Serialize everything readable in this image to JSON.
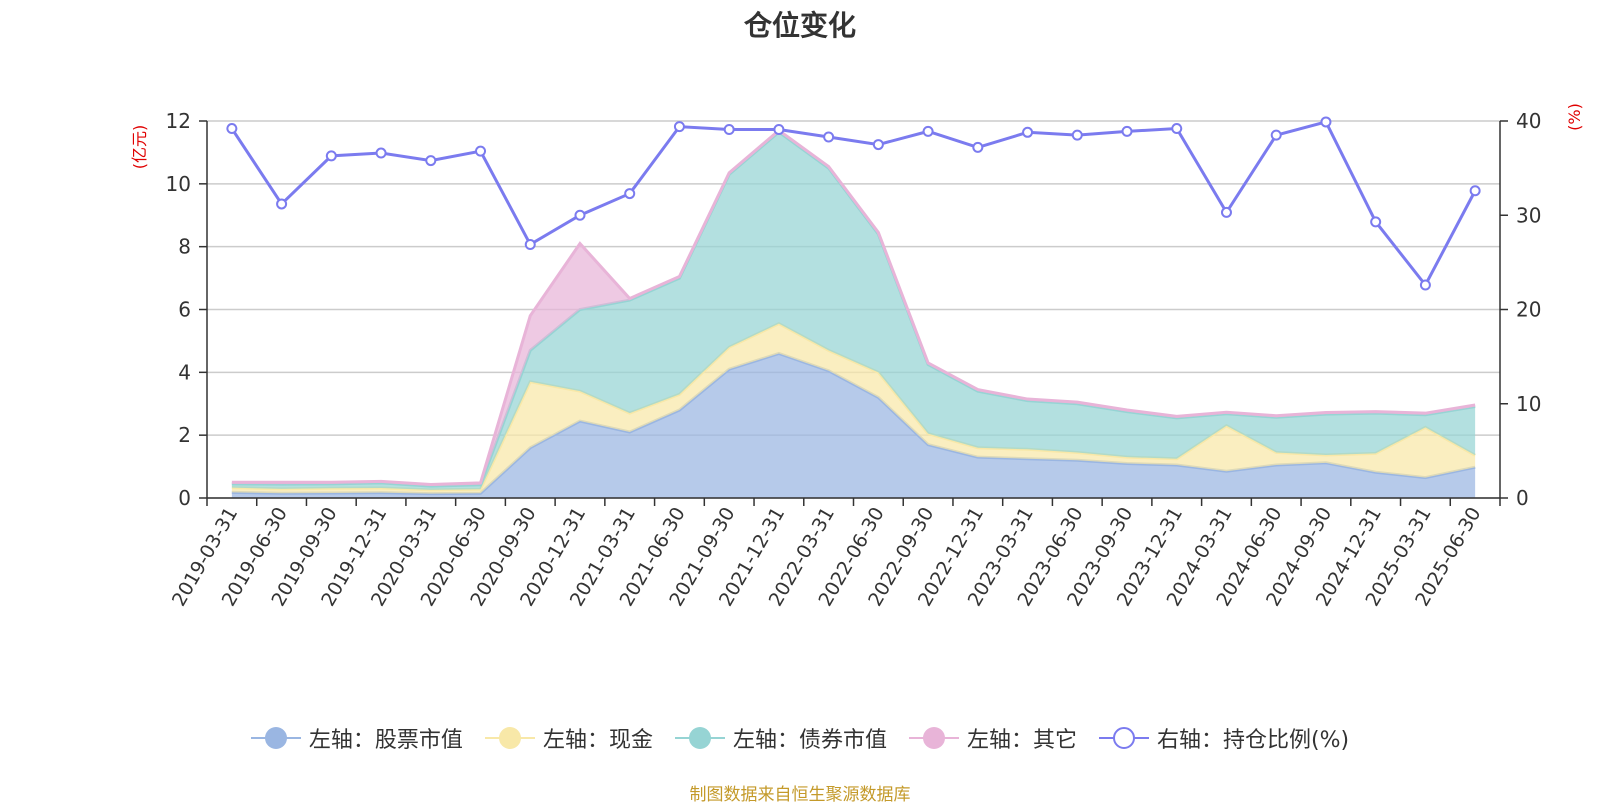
{
  "title": "仓位变化",
  "source": "制图数据来自恒生聚源数据库",
  "colors": {
    "stock": "#9ab6e2",
    "cash": "#f8e8a8",
    "bond": "#96d4d4",
    "other": "#e8b4d8",
    "ratio": "#7b7bef",
    "unit": "#e00000"
  },
  "legend": [
    {
      "label": "左轴：股票市值",
      "key": "stock",
      "style": "filled"
    },
    {
      "label": "左轴：现金",
      "key": "cash",
      "style": "filled"
    },
    {
      "label": "左轴：债券市值",
      "key": "bond",
      "style": "filled"
    },
    {
      "label": "左轴：其它",
      "key": "other",
      "style": "filled"
    },
    {
      "label": "右轴：持仓比例(%)",
      "key": "ratio",
      "style": "hollow"
    }
  ],
  "chart_data": {
    "type": "area",
    "title": "仓位变化",
    "left_unit": "(亿元)",
    "right_unit": "(%)",
    "ylim_left": [
      0,
      12
    ],
    "yticks_left": [
      0,
      2,
      4,
      6,
      8,
      10,
      12
    ],
    "ylim_right": [
      0,
      40
    ],
    "yticks_right": [
      0,
      10,
      20,
      30,
      40
    ],
    "grid": true,
    "legend_position": "bottom",
    "categories": [
      "2019-03-31",
      "2019-06-30",
      "2019-09-30",
      "2019-12-31",
      "2020-03-31",
      "2020-06-30",
      "2020-09-30",
      "2020-12-31",
      "2021-03-31",
      "2021-06-30",
      "2021-09-30",
      "2021-12-31",
      "2022-03-31",
      "2022-06-30",
      "2022-09-30",
      "2022-12-31",
      "2023-03-31",
      "2023-06-30",
      "2023-09-30",
      "2023-12-31",
      "2024-03-31",
      "2024-06-30",
      "2024-09-30",
      "2024-12-31",
      "2025-03-31",
      "2025-06-30"
    ],
    "stacked_series": [
      {
        "name": "左轴：股票市值",
        "key": "stock",
        "axis": "left",
        "values": [
          0.18,
          0.15,
          0.16,
          0.17,
          0.14,
          0.15,
          1.6,
          2.45,
          2.1,
          2.8,
          4.1,
          4.6,
          4.05,
          3.2,
          1.7,
          1.3,
          1.25,
          1.2,
          1.1,
          1.05,
          0.85,
          1.05,
          1.12,
          0.82,
          0.65,
          0.98
        ]
      },
      {
        "name": "左轴：现金",
        "key": "cash",
        "axis": "left",
        "values": [
          0.15,
          0.14,
          0.15,
          0.15,
          0.12,
          0.13,
          2.1,
          0.95,
          0.6,
          0.5,
          0.7,
          0.95,
          0.65,
          0.8,
          0.35,
          0.3,
          0.3,
          0.25,
          0.2,
          0.2,
          1.45,
          0.4,
          0.25,
          0.6,
          1.6,
          0.38
        ]
      },
      {
        "name": "左轴：债券市值",
        "key": "bond",
        "axis": "left",
        "values": [
          0.12,
          0.15,
          0.14,
          0.16,
          0.12,
          0.14,
          1.0,
          2.6,
          3.6,
          3.7,
          5.5,
          6.1,
          5.8,
          4.4,
          2.2,
          1.8,
          1.55,
          1.55,
          1.45,
          1.3,
          0.38,
          1.12,
          1.3,
          1.28,
          0.4,
          1.55
        ]
      },
      {
        "name": "左轴：其它",
        "key": "other",
        "axis": "left",
        "values": [
          0.05,
          0.06,
          0.05,
          0.05,
          0.05,
          0.06,
          1.1,
          2.1,
          0.05,
          0.05,
          0.05,
          0.05,
          0.05,
          0.05,
          0.05,
          0.05,
          0.05,
          0.05,
          0.05,
          0.05,
          0.05,
          0.05,
          0.05,
          0.05,
          0.05,
          0.05
        ]
      }
    ],
    "line_series": {
      "name": "右轴：持仓比例(%)",
      "key": "ratio",
      "axis": "right",
      "values": [
        39.2,
        31.2,
        36.3,
        36.6,
        35.8,
        36.8,
        26.9,
        30.0,
        32.3,
        39.4,
        39.1,
        39.1,
        38.3,
        37.5,
        38.9,
        37.2,
        38.8,
        38.5,
        38.9,
        39.2,
        30.3,
        38.5,
        39.9,
        29.3,
        22.6,
        32.6
      ]
    }
  }
}
